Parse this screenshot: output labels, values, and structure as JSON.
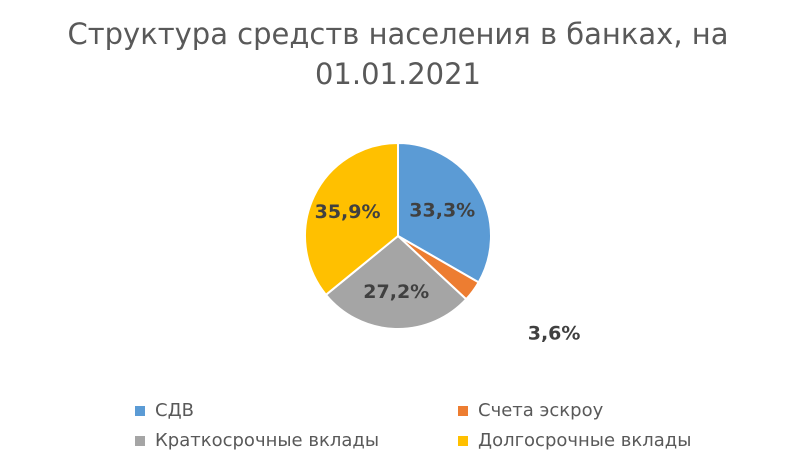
{
  "title_lines": [
    "Структура средств населения в банках, на",
    "01.01.2021"
  ],
  "chart_data": {
    "type": "pie",
    "title": "Структура средств населения в банках, на 01.01.2021",
    "legend_position": "bottom",
    "slices": [
      {
        "name": "СДВ",
        "value": 33.3,
        "label": "33,3%",
        "color": "#5B9BD5"
      },
      {
        "name": "Счета эскроу",
        "value": 3.6,
        "label": "3,6%",
        "color": "#ED7D31"
      },
      {
        "name": "Краткосрочные вклады",
        "value": 27.2,
        "label": "27,2%",
        "color": "#A5A5A5"
      },
      {
        "name": "Долгосрочные вклады",
        "value": 35.9,
        "label": "35,9%",
        "color": "#FFC000"
      }
    ]
  }
}
